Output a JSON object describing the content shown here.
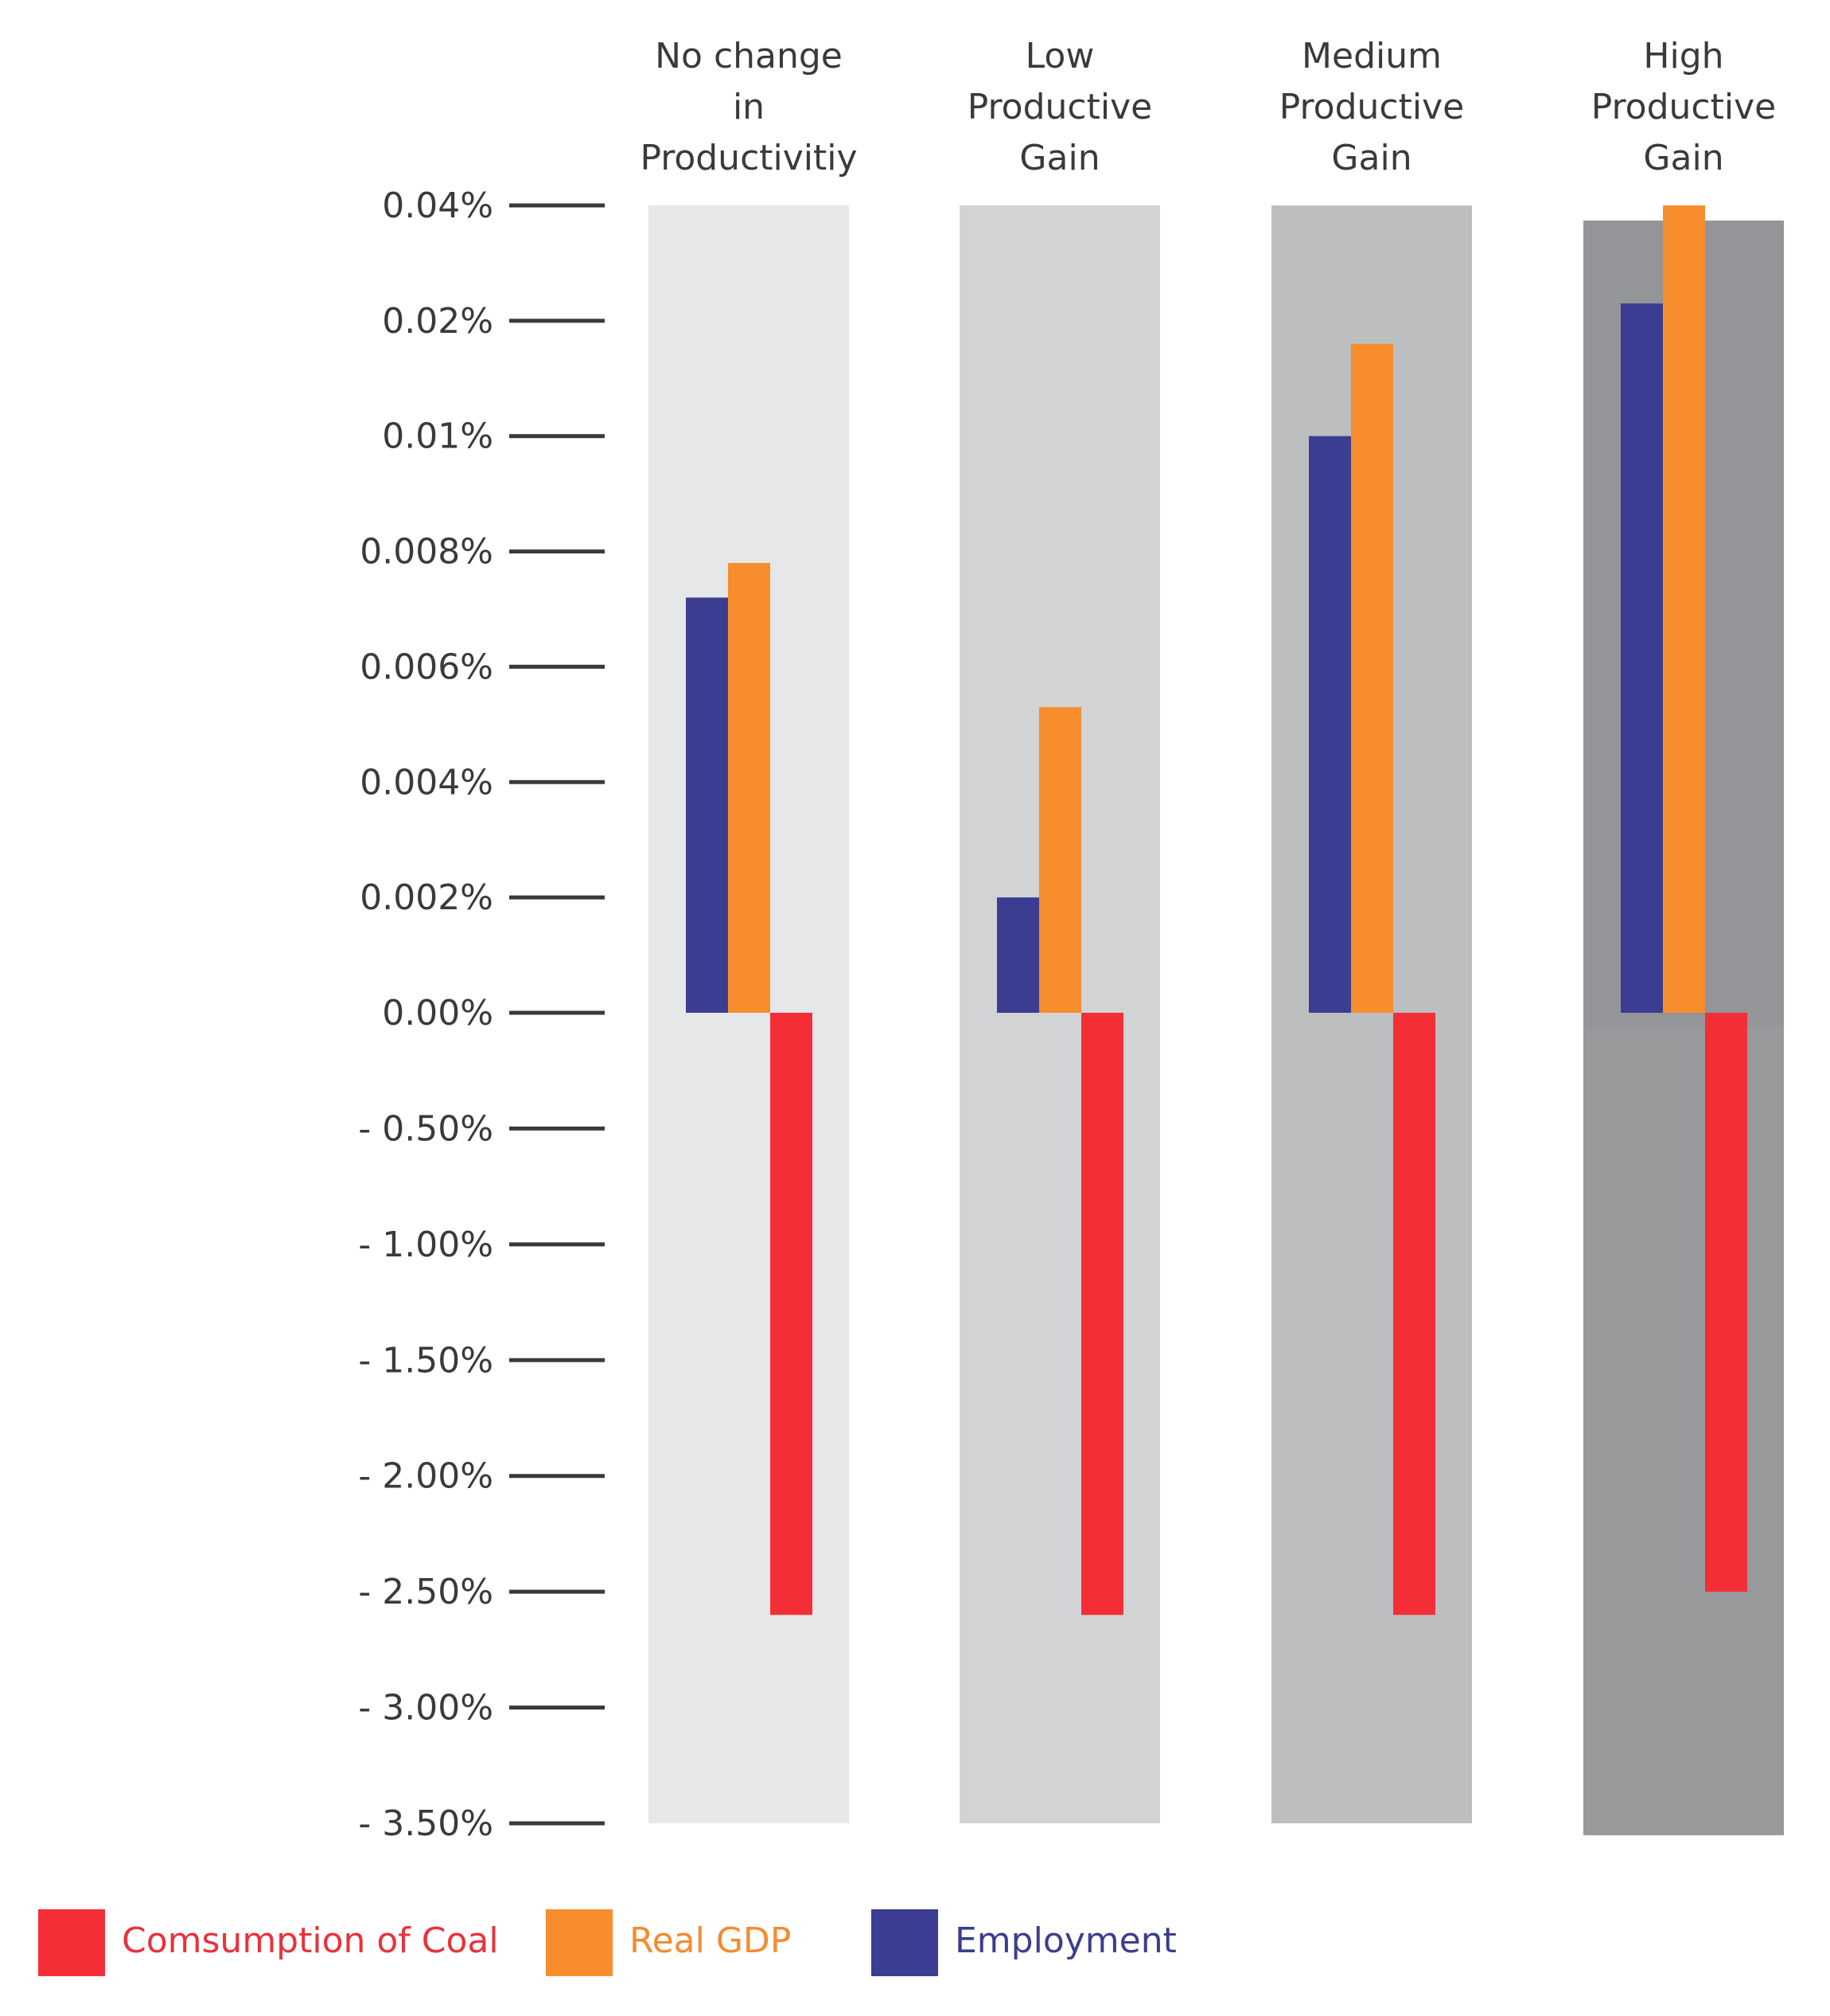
{
  "chart_data": {
    "type": "bar",
    "title": "",
    "xlabel": "",
    "ylabel": "",
    "categories": [
      [
        "No change",
        "in",
        "Productivitiy"
      ],
      [
        "Low",
        "Productive",
        "Gain"
      ],
      [
        "Medium",
        "Productive",
        "Gain"
      ],
      [
        "High",
        "Productive",
        "Gain"
      ]
    ],
    "category_background_colors": [
      "#e6e7e8",
      "#d1d3d4",
      "#bcbec0",
      "#939598"
    ],
    "y_tick_labels": [
      "0.04%",
      "0.02%",
      "0.01%",
      "0.008%",
      "0.006%",
      "0.004%",
      "0.002%",
      "0.00%",
      "- 0.50%",
      "- 1.00%",
      "- 1.50%",
      "- 2.00%",
      "- 2.50%",
      "- 3.00%",
      "- 3.50%"
    ],
    "y_tick_values": [
      0.04,
      0.02,
      0.01,
      0.008,
      0.006,
      0.004,
      0.002,
      0.0,
      -0.5,
      -1.0,
      -1.5,
      -2.0,
      -2.5,
      -3.0,
      -3.5
    ],
    "series": [
      {
        "name": "Employment",
        "color": "#3a3d91",
        "values": [
          0.0072,
          0.002,
          0.01,
          0.023
        ]
      },
      {
        "name": "Real GDP",
        "color": "#f78d2d",
        "values": [
          0.0078,
          0.0053,
          0.018,
          0.04
        ]
      },
      {
        "name": "Comsumption of Coal",
        "color": "#f42e37",
        "values": [
          -2.6,
          -2.6,
          -2.6,
          -2.5
        ]
      }
    ],
    "legend": [
      {
        "label": "Comsumption of Coal",
        "color": "#f42e37",
        "text_color": "#e8323c"
      },
      {
        "label": "Real GDP",
        "color": "#f78d2d",
        "text_color": "#f68b2e"
      },
      {
        "label": "Employment",
        "color": "#3a3d91",
        "text_color": "#3b3e8e"
      }
    ],
    "legend_position": "bottom-left"
  }
}
